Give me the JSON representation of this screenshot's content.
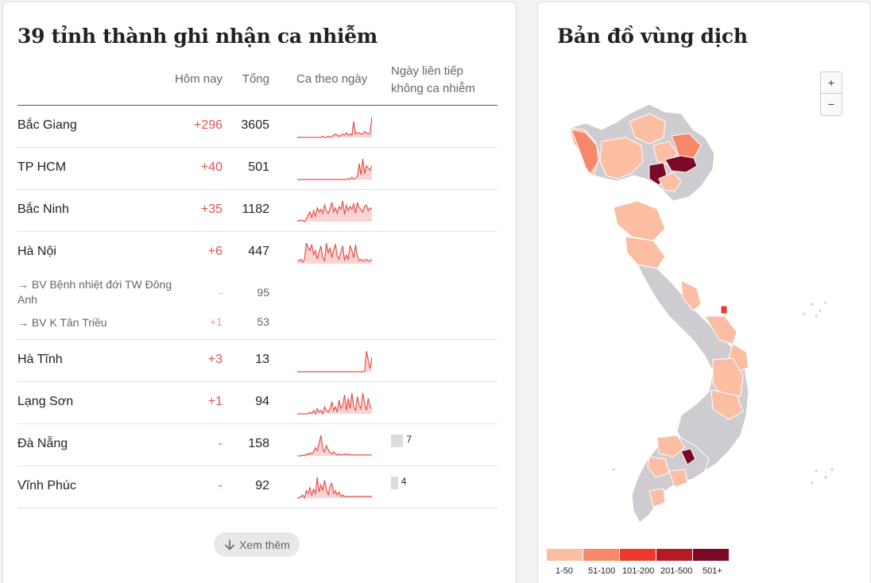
{
  "table": {
    "title": "39 tỉnh thành ghi nhận ca nhiễm",
    "headers": {
      "today": "Hôm nay",
      "total": "Tổng",
      "daily": "Ca theo ngày",
      "streak_line1": "Ngày liên tiếp",
      "streak_line2": "không ca nhiễm"
    },
    "rows": [
      {
        "name": "Bắc Giang",
        "today": "+296",
        "total": "3605",
        "spark": [
          0,
          0,
          0,
          0,
          0,
          0,
          0,
          0,
          0,
          0,
          0,
          0,
          0,
          0,
          1,
          0,
          0,
          1,
          0,
          1,
          2,
          3,
          2,
          1,
          2,
          3,
          2,
          4,
          2,
          3,
          2,
          14,
          3,
          4,
          4,
          3,
          3,
          5,
          4,
          3,
          4,
          18
        ]
      },
      {
        "name": "TP HCM",
        "today": "+40",
        "total": "501",
        "spark": [
          0,
          0,
          0,
          0,
          0,
          0,
          0,
          0,
          0,
          0,
          0,
          0,
          0,
          0,
          0,
          0,
          0,
          0,
          0,
          0,
          0,
          0,
          0,
          0,
          0,
          0,
          0,
          0,
          1,
          0,
          2,
          0,
          1,
          3,
          14,
          4,
          18,
          5,
          12,
          10,
          8,
          12
        ]
      },
      {
        "name": "Bắc Ninh",
        "today": "+35",
        "total": "1182",
        "spark": [
          0,
          1,
          1,
          1,
          0,
          2,
          5,
          7,
          3,
          8,
          4,
          10,
          7,
          9,
          6,
          12,
          8,
          6,
          9,
          14,
          7,
          10,
          6,
          11,
          9,
          15,
          5,
          12,
          8,
          11,
          9,
          13,
          6,
          14,
          10,
          9,
          7,
          11,
          12,
          8,
          10,
          9
        ]
      },
      {
        "name": "Hà Nội",
        "today": "+6",
        "total": "447",
        "spark": [
          2,
          2,
          3,
          1,
          3,
          14,
          11,
          9,
          13,
          6,
          9,
          3,
          8,
          12,
          4,
          2,
          14,
          7,
          11,
          4,
          10,
          13,
          5,
          3,
          8,
          12,
          2,
          6,
          3,
          12,
          9,
          4,
          13,
          5,
          2,
          3,
          2,
          2,
          3,
          2,
          2,
          3
        ]
      },
      {
        "name": "Hà Tĩnh",
        "today": "+3",
        "total": "13",
        "spark": [
          0,
          0,
          0,
          0,
          0,
          0,
          0,
          0,
          0,
          0,
          0,
          0,
          0,
          0,
          0,
          0,
          0,
          0,
          0,
          0,
          0,
          0,
          0,
          0,
          0,
          0,
          0,
          0,
          0,
          0,
          0,
          0,
          0,
          0,
          0,
          0,
          0,
          0,
          14,
          8,
          2,
          10
        ]
      },
      {
        "name": "Lạng Sơn",
        "today": "+1",
        "total": "94",
        "spark": [
          0,
          0,
          0,
          0,
          0,
          0,
          0,
          1,
          0,
          2,
          0,
          3,
          1,
          2,
          0,
          4,
          2,
          1,
          3,
          7,
          2,
          4,
          1,
          8,
          3,
          5,
          11,
          2,
          9,
          3,
          12,
          4,
          2,
          10,
          5,
          3,
          12,
          6,
          2,
          9,
          4,
          3
        ]
      },
      {
        "name": "Đà Nẵng",
        "today": "-",
        "total": "158",
        "spark": [
          0,
          0,
          0,
          1,
          0,
          2,
          1,
          3,
          2,
          4,
          8,
          5,
          12,
          20,
          7,
          4,
          10,
          6,
          3,
          2,
          4,
          2,
          1,
          2,
          1,
          1,
          2,
          1,
          2,
          1,
          1,
          1,
          1,
          1,
          1,
          1,
          1,
          1,
          1,
          1,
          1,
          1
        ]
      },
      {
        "name": "Vĩnh Phúc",
        "today": "-",
        "total": "92",
        "spark": [
          0,
          0,
          1,
          2,
          0,
          5,
          3,
          7,
          2,
          6,
          3,
          14,
          4,
          9,
          5,
          12,
          6,
          2,
          8,
          10,
          3,
          5,
          2,
          4,
          1,
          2,
          1,
          1,
          1,
          1,
          1,
          1,
          1,
          1,
          1,
          1,
          1,
          1,
          1,
          1,
          1,
          1
        ]
      }
    ],
    "sub_rows": [
      {
        "name": "→ BV Bệnh nhiệt đới TW Đông Anh",
        "today": "-",
        "total": "95"
      },
      {
        "name": "→ BV K Tân Triều",
        "today": "+1",
        "total": "53"
      }
    ],
    "streaks": [
      {
        "province": "Đà Nẵng",
        "days": "7",
        "value": 7
      },
      {
        "province": "Vĩnh Phúc",
        "days": "4",
        "value": 4
      }
    ],
    "more_label": "Xem thêm"
  },
  "map": {
    "title": "Bản đồ vùng dịch",
    "zoom_in": "+",
    "zoom_out": "−",
    "legend": [
      {
        "label": "1-50",
        "color": "#fbbea3"
      },
      {
        "label": "51-100",
        "color": "#f5896a"
      },
      {
        "label": "101-200",
        "color": "#ea3a2d"
      },
      {
        "label": "201-500",
        "color": "#b51b25"
      },
      {
        "label": "501+",
        "color": "#7a0a25"
      }
    ],
    "no_case_color": "#cfccd1",
    "accent": "#e2544f"
  }
}
